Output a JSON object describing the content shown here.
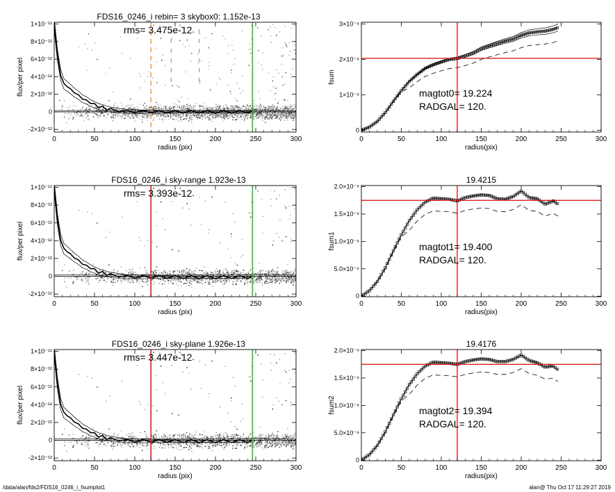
{
  "footer": {
    "left": "/data/alan/fds2/FDS16_0246_i_fsumplot1",
    "right": "alan@  Thu Oct 17 11:29:27 2019"
  },
  "colors": {
    "axis": "#000000",
    "scatter": "#9a9a9a",
    "scatter_dark": "#222222",
    "red_line": "#d62020",
    "green_line": "#22c022",
    "orange_line": "#f0a040"
  },
  "chart_data": [
    {
      "type": "scatter",
      "title": "FDS16_0246_i rebin= 3    skybox0:  1.152e-13",
      "annotation": "rms= 3.475e-12",
      "xlabel": "radius (pix)",
      "ylabel": "flux/per pixel",
      "xlim": [
        0,
        300
      ],
      "ylim": [
        -2.3e-12,
        1.02e-11
      ],
      "xticks": [
        0,
        50,
        100,
        150,
        200,
        250,
        300
      ],
      "xtick_labels": [
        "0",
        "50",
        "100",
        "150",
        "200",
        "250",
        "300"
      ],
      "yticks": [
        -2e-12,
        0,
        2e-12,
        4e-12,
        6e-12,
        8e-12,
        1e-11
      ],
      "ytick_labels": [
        "-2×10⁻¹²",
        "0",
        "2×10⁻¹²",
        "4×10⁻¹²",
        "6×10⁻¹²",
        "8×10⁻¹²",
        "1×10⁻¹¹"
      ],
      "vlines": [
        {
          "x": 120,
          "color": "#f0a040",
          "style": "dashed"
        },
        {
          "x": 246,
          "color": "#22c022",
          "style": "solid"
        }
      ],
      "extra_dashes": [
        145,
        180
      ],
      "profile": {
        "x": [
          0,
          4,
          8,
          12,
          16,
          20,
          25,
          30,
          35,
          40,
          45,
          50,
          55,
          60,
          65,
          70,
          80,
          90,
          100,
          110,
          120,
          130,
          140,
          150,
          160,
          170,
          180,
          190,
          200,
          210,
          220,
          230,
          240,
          246
        ],
        "y": [
          1e-11,
          6.5e-12,
          4.2e-12,
          3.2e-12,
          2.9e-12,
          2.6e-12,
          2.2e-12,
          1.9e-12,
          1.5e-12,
          1.3e-12,
          1e-12,
          8e-13,
          6e-13,
          5e-13,
          3.5e-13,
          2.5e-13,
          1.5e-13,
          5e-14,
          5e-14,
          0,
          5e-14,
          0,
          2e-14,
          0,
          0,
          0,
          0,
          0,
          -2e-14,
          0,
          0,
          0,
          0,
          0
        ]
      }
    },
    {
      "type": "line",
      "title": "",
      "annotation_lines": [
        "magtot0=  19.224",
        "RADGAL=    120."
      ],
      "xlabel": "radius(pix)",
      "ylabel": "fsum",
      "xlim": [
        0,
        300
      ],
      "ylim": [
        -5e-10,
        3.05e-08
      ],
      "xticks": [
        0,
        50,
        100,
        150,
        200,
        250,
        300
      ],
      "xtick_labels": [
        "0",
        "50",
        "100",
        "150",
        "200",
        "250",
        "300"
      ],
      "yticks": [
        0,
        1e-08,
        2e-08,
        3e-08
      ],
      "ytick_labels": [
        "0",
        "1×10⁻⁸",
        "2×10⁻⁸",
        "3×10⁻⁸"
      ],
      "vline_x": 120,
      "hline_y": 2.03e-08,
      "series": [
        {
          "x": [
            0,
            10,
            20,
            30,
            40,
            50,
            60,
            70,
            80,
            90,
            100,
            110,
            120,
            130,
            140,
            150,
            160,
            170,
            180,
            190,
            200,
            210,
            220,
            230,
            240,
            246
          ],
          "y": [
            0,
            9e-10,
            2.5e-09,
            5e-09,
            8.2e-09,
            1.12e-08,
            1.38e-08,
            1.58e-08,
            1.75e-08,
            1.85e-08,
            1.93e-08,
            2e-08,
            2.03e-08,
            2.1e-08,
            2.18e-08,
            2.3e-08,
            2.38e-08,
            2.45e-08,
            2.52e-08,
            2.58e-08,
            2.68e-08,
            2.75e-08,
            2.78e-08,
            2.8e-08,
            2.85e-08,
            2.9e-08
          ]
        }
      ]
    },
    {
      "type": "scatter",
      "title": "FDS16_0246_i sky-range  1.923e-13",
      "annotation": "rms= 3.393e-12",
      "xlabel": "radius (pix)",
      "ylabel": "flux/per pixel",
      "xlim": [
        0,
        300
      ],
      "ylim": [
        -2.3e-12,
        1.02e-11
      ],
      "xticks": [
        0,
        50,
        100,
        150,
        200,
        250,
        300
      ],
      "xtick_labels": [
        "0",
        "50",
        "100",
        "150",
        "200",
        "250",
        "300"
      ],
      "yticks": [
        -2e-12,
        0,
        2e-12,
        4e-12,
        6e-12,
        8e-12,
        1e-11
      ],
      "ytick_labels": [
        "-2×10⁻¹²",
        "0",
        "2×10⁻¹²",
        "4×10⁻¹²",
        "6×10⁻¹²",
        "8×10⁻¹²",
        "1×10⁻¹¹"
      ],
      "vlines": [
        {
          "x": 120,
          "color": "#d62020",
          "style": "solid"
        },
        {
          "x": 246,
          "color": "#22c022",
          "style": "solid"
        }
      ],
      "extra_dashes": [],
      "profile": {
        "x": [
          0,
          4,
          8,
          12,
          16,
          20,
          25,
          30,
          35,
          40,
          45,
          50,
          55,
          60,
          65,
          70,
          80,
          90,
          100,
          110,
          120,
          130,
          140,
          150,
          160,
          170,
          180,
          190,
          200,
          210,
          220,
          230,
          240,
          246
        ],
        "y": [
          1e-11,
          6.4e-12,
          4.1e-12,
          3.1e-12,
          2.8e-12,
          2.5e-12,
          2.1e-12,
          1.8e-12,
          1.4e-12,
          1.2e-12,
          9e-13,
          7e-13,
          5e-13,
          4e-13,
          2.5e-13,
          1.5e-13,
          5e-14,
          -5e-14,
          -5e-14,
          -1e-13,
          -5e-14,
          -1e-13,
          -8e-14,
          -1e-13,
          -1e-13,
          -1e-13,
          -1e-13,
          -1e-13,
          -1.2e-13,
          -1e-13,
          -1e-13,
          -1e-13,
          -1e-13,
          -1e-13
        ]
      }
    },
    {
      "type": "line",
      "title": "19.4215",
      "annotation_lines": [
        "magtot1=  19.400",
        "RADGAL=    120."
      ],
      "xlabel": "radius(pix)",
      "ylabel": "fsum1",
      "xlim": [
        0,
        300
      ],
      "ylim": [
        -1e-10,
        2.02e-08
      ],
      "xticks": [
        0,
        50,
        100,
        150,
        200,
        250,
        300
      ],
      "xtick_labels": [
        "0",
        "50",
        "100",
        "150",
        "200",
        "250",
        "300"
      ],
      "yticks": [
        0,
        5e-09,
        1e-08,
        1.5e-08,
        2e-08
      ],
      "ytick_labels": [
        "0",
        "5.0×10⁻⁹",
        "1.0×10⁻⁸",
        "1.5×10⁻⁸",
        "2.0×10⁻⁸"
      ],
      "vline_x": 120,
      "hline_y": 1.75e-08,
      "series": [
        {
          "x": [
            0,
            10,
            20,
            30,
            40,
            50,
            60,
            70,
            80,
            90,
            100,
            110,
            120,
            130,
            140,
            150,
            160,
            170,
            180,
            190,
            200,
            210,
            220,
            230,
            240,
            246
          ],
          "y": [
            0,
            1e-09,
            2.7e-09,
            5.2e-09,
            8.3e-09,
            1.12e-08,
            1.38e-08,
            1.58e-08,
            1.72e-08,
            1.79e-08,
            1.78e-08,
            1.77e-08,
            1.74e-08,
            1.8e-08,
            1.83e-08,
            1.85e-08,
            1.84e-08,
            1.78e-08,
            1.77e-08,
            1.82e-08,
            1.92e-08,
            1.8e-08,
            1.78e-08,
            1.68e-08,
            1.74e-08,
            1.68e-08
          ]
        }
      ]
    },
    {
      "type": "scatter",
      "title": "FDS16_0246_i sky-plane  1.926e-13",
      "annotation": "rms= 3.447e-12",
      "xlabel": "radius (pix)",
      "ylabel": "flux/per pixel",
      "xlim": [
        0,
        300
      ],
      "ylim": [
        -2.3e-12,
        1.02e-11
      ],
      "xticks": [
        0,
        50,
        100,
        150,
        200,
        250,
        300
      ],
      "xtick_labels": [
        "0",
        "50",
        "100",
        "150",
        "200",
        "250",
        "300"
      ],
      "yticks": [
        -2e-12,
        0,
        2e-12,
        4e-12,
        6e-12,
        8e-12,
        1e-11
      ],
      "ytick_labels": [
        "-2×10⁻¹²",
        "0",
        "2×10⁻¹²",
        "4×10⁻¹²",
        "6×10⁻¹²",
        "8×10⁻¹²",
        "1×10⁻¹¹"
      ],
      "vlines": [
        {
          "x": 120,
          "color": "#d62020",
          "style": "solid"
        },
        {
          "x": 246,
          "color": "#22c022",
          "style": "solid"
        }
      ],
      "extra_dashes": [],
      "profile": {
        "x": [
          0,
          4,
          8,
          12,
          16,
          20,
          25,
          30,
          35,
          40,
          45,
          50,
          55,
          60,
          65,
          70,
          80,
          90,
          100,
          110,
          120,
          130,
          140,
          150,
          160,
          170,
          180,
          190,
          200,
          210,
          220,
          230,
          240,
          246
        ],
        "y": [
          1e-11,
          6.4e-12,
          4.1e-12,
          3.1e-12,
          2.8e-12,
          2.5e-12,
          2.1e-12,
          1.8e-12,
          1.4e-12,
          1.2e-12,
          9e-13,
          7e-13,
          5e-13,
          4e-13,
          2.5e-13,
          1.5e-13,
          5e-14,
          -5e-14,
          -5e-14,
          -1e-13,
          -5e-14,
          -1e-13,
          -8e-14,
          -1e-13,
          -1e-13,
          -1e-13,
          -1e-13,
          -1e-13,
          -1.2e-13,
          -1e-13,
          -1e-13,
          -1e-13,
          -1e-13,
          -1e-13
        ]
      }
    },
    {
      "type": "line",
      "title": "19.4176",
      "annotation_lines": [
        "magtot2=  19.394",
        "RADGAL=    120."
      ],
      "xlabel": "radius(pix)",
      "ylabel": "fsum2",
      "xlim": [
        0,
        300
      ],
      "ylim": [
        -1e-10,
        2.02e-08
      ],
      "xticks": [
        0,
        50,
        100,
        150,
        200,
        250,
        300
      ],
      "xtick_labels": [
        "0",
        "50",
        "100",
        "150",
        "200",
        "250",
        "300"
      ],
      "yticks": [
        0,
        5e-09,
        1e-08,
        1.5e-08,
        2e-08
      ],
      "ytick_labels": [
        "0",
        "5.0×10⁻⁹",
        "1.0×10⁻⁸",
        "1.5×10⁻⁸",
        "2.0×10⁻⁸"
      ],
      "vline_x": 120,
      "hline_y": 1.75e-08,
      "series": [
        {
          "x": [
            0,
            10,
            20,
            30,
            40,
            50,
            60,
            70,
            80,
            90,
            100,
            110,
            120,
            130,
            140,
            150,
            160,
            170,
            180,
            190,
            200,
            210,
            220,
            230,
            240,
            246
          ],
          "y": [
            0,
            1e-09,
            2.7e-09,
            5.2e-09,
            8.3e-09,
            1.12e-08,
            1.38e-08,
            1.58e-08,
            1.72e-08,
            1.79e-08,
            1.78e-08,
            1.77e-08,
            1.75e-08,
            1.8e-08,
            1.83e-08,
            1.85e-08,
            1.84e-08,
            1.8e-08,
            1.8e-08,
            1.84e-08,
            1.92e-08,
            1.82e-08,
            1.78e-08,
            1.7e-08,
            1.72e-08,
            1.65e-08
          ]
        }
      ]
    }
  ]
}
